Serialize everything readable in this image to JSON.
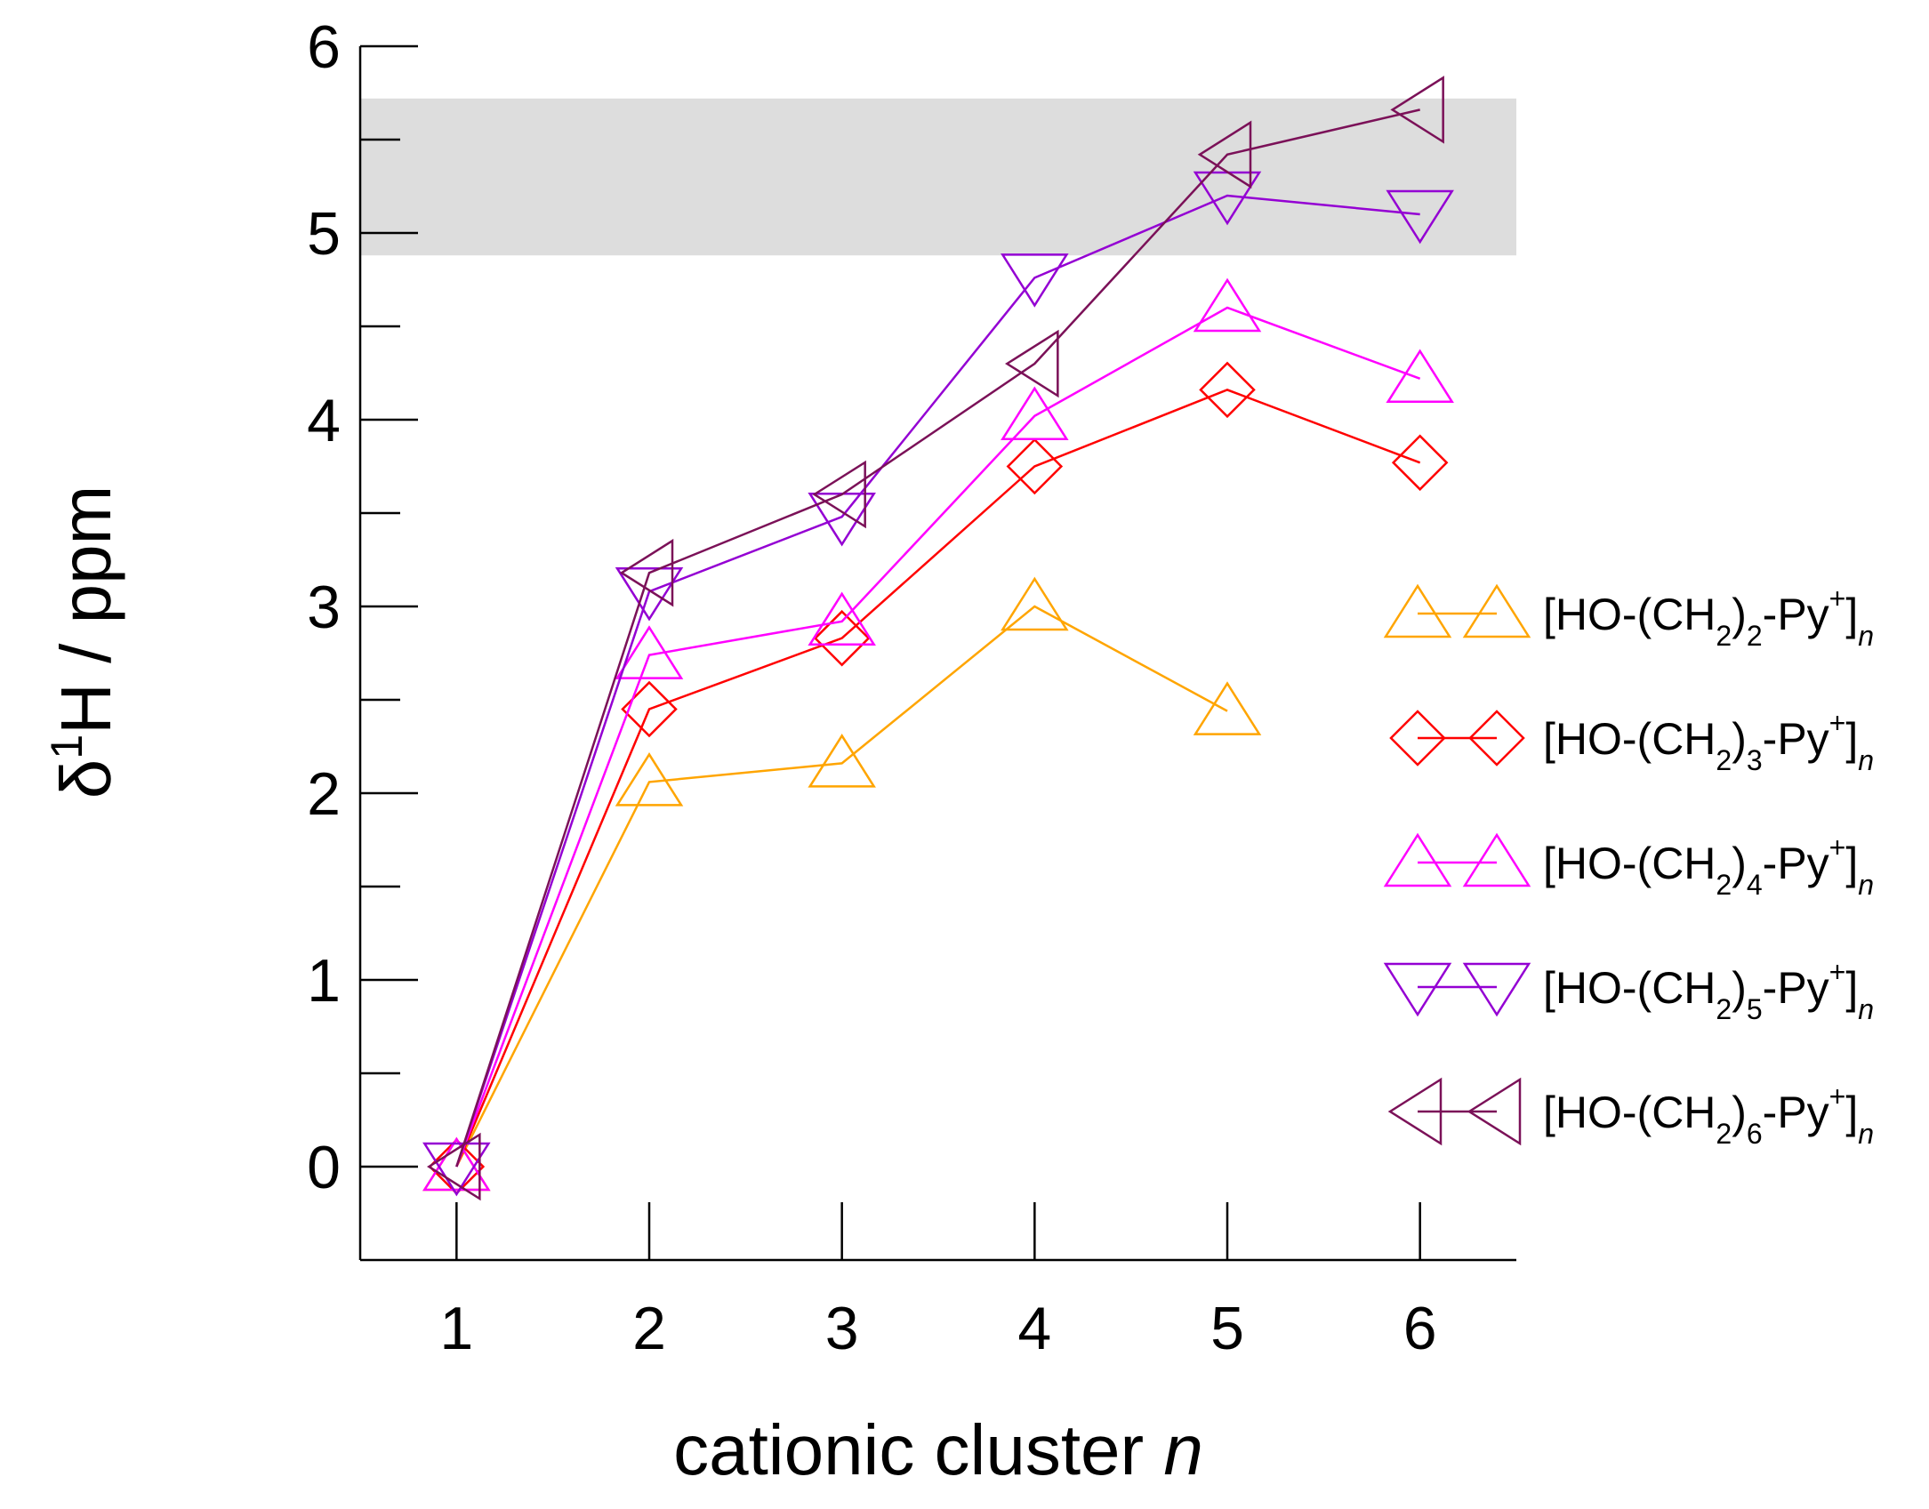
{
  "chart_data": {
    "type": "line",
    "title": "",
    "xlabel": "cationic cluster",
    "xlabel_var": "n",
    "ylabel_delta": "δ",
    "ylabel_sup": "1",
    "ylabel_rest": "H / ppm",
    "xlim": [
      0.5,
      6.5
    ],
    "ylim": [
      -0.5,
      6
    ],
    "x_ticks": [
      1,
      2,
      3,
      4,
      5,
      6
    ],
    "y_ticks": [
      0,
      1,
      2,
      3,
      4,
      5,
      6
    ],
    "highlight_band": {
      "y_from": 4.88,
      "y_to": 5.72,
      "color": "#dddddd"
    },
    "legend_position": "right",
    "series": [
      {
        "name": "[HO-(CH2)2-Py+]n",
        "pre": "[HO-(CH",
        "sub": "2",
        "mid": ")",
        "sub2": "2",
        "post": "-Py",
        "sup": "+",
        "close": "]",
        "subn": "n",
        "color": "#ffa500",
        "marker": "triangle-up",
        "x": [
          1,
          2,
          3,
          4,
          5
        ],
        "values": [
          0,
          2.06,
          2.16,
          3.0,
          2.44
        ]
      },
      {
        "name": "[HO-(CH2)3-Py+]n",
        "pre": "[HO-(CH",
        "sub": "2",
        "mid": ")",
        "sub2": "3",
        "post": "-Py",
        "sup": "+",
        "close": "]",
        "subn": "n",
        "color": "#ff0000",
        "marker": "diamond",
        "x": [
          1,
          2,
          3,
          4,
          5,
          6
        ],
        "values": [
          0,
          2.45,
          2.83,
          3.75,
          4.16,
          3.77
        ]
      },
      {
        "name": "[HO-(CH2)4-Py+]n",
        "pre": "[HO-(CH",
        "sub": "2",
        "mid": ")",
        "sub2": "4",
        "post": "-Py",
        "sup": "+",
        "close": "]",
        "subn": "n",
        "color": "#ff00ff",
        "marker": "triangle-up",
        "x": [
          1,
          2,
          3,
          4,
          5,
          6
        ],
        "values": [
          0,
          2.74,
          2.92,
          4.02,
          4.6,
          4.22
        ]
      },
      {
        "name": "[HO-(CH2)5-Py+]n",
        "pre": "[HO-(CH",
        "sub": "2",
        "mid": ")",
        "sub2": "5",
        "post": "-Py",
        "sup": "+",
        "close": "]",
        "subn": "n",
        "color": "#9400d3",
        "marker": "triangle-down",
        "x": [
          1,
          2,
          3,
          4,
          5,
          6
        ],
        "values": [
          0,
          3.08,
          3.48,
          4.76,
          5.2,
          5.1
        ]
      },
      {
        "name": "[HO-(CH2)6-Py+]n",
        "pre": "[HO-(CH",
        "sub": "2",
        "mid": ")",
        "sub2": "6",
        "post": "-Py",
        "sup": "+",
        "close": "]",
        "subn": "n",
        "color": "#7b1158",
        "marker": "triangle-left",
        "x": [
          1,
          2,
          3,
          4,
          5,
          6
        ],
        "values": [
          0,
          3.18,
          3.6,
          4.3,
          5.42,
          5.66
        ]
      }
    ]
  }
}
